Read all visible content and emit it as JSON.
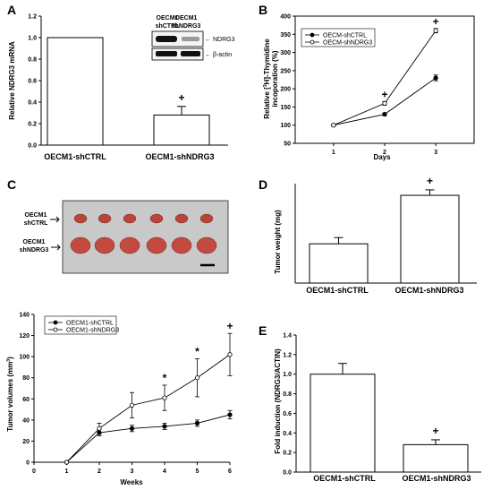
{
  "panels": {
    "A": {
      "label": "A",
      "ylabel": "Relative NDRG3 mRNA",
      "ylim": [
        0,
        1.2
      ],
      "yticks": [
        "0.0",
        "0.2",
        "0.4",
        "0.6",
        "0.8",
        "1.0",
        "1.2"
      ],
      "categories": [
        "OECM1-shCTRL",
        "OECM1-shNDRG3"
      ],
      "values": [
        1.0,
        0.28
      ],
      "errors": [
        0,
        0.08
      ],
      "sig": "+",
      "blot": {
        "col1": [
          "OECM1",
          "shCTRL"
        ],
        "col2": [
          "OECM1",
          "shNDRG3"
        ],
        "row1": "NDRG3",
        "row2": "β-actin"
      }
    },
    "B": {
      "label": "B",
      "ylabel": "Relative [³H]-Thymidine incoporation (%)",
      "xlabel": "Days",
      "ylim": [
        50,
        400
      ],
      "yticks": [
        "50",
        "100",
        "150",
        "200",
        "250",
        "300",
        "350",
        "400"
      ],
      "xticks": [
        "1",
        "2",
        "3"
      ],
      "legend": [
        "OECM-shCTRL",
        "OECM-shNDRG3"
      ],
      "sig": [
        "+",
        "+"
      ]
    },
    "C": {
      "label": "C",
      "photo_labels": [
        [
          "OECM1",
          "shCTRL"
        ],
        [
          "OECM1",
          "shNDRG3"
        ]
      ],
      "ylabel": "Tumor volumes (mm³)",
      "xlabel": "Weeks",
      "ylim": [
        0,
        140
      ],
      "xlim": [
        0,
        6
      ],
      "yticks": [
        "0",
        "20",
        "40",
        "60",
        "80",
        "100",
        "120",
        "140"
      ],
      "xticks": [
        "0",
        "1",
        "2",
        "3",
        "4",
        "5",
        "6"
      ],
      "legend": [
        "OECM1-shCTRL",
        "OECM1-shNDRG3"
      ],
      "sig": [
        "*",
        "*",
        "+"
      ]
    },
    "D": {
      "label": "D",
      "ylabel": "Tumor weight (mg)",
      "categories": [
        "OECM1-shCTRL",
        "OECM1-shNDRG3"
      ],
      "values": [
        158,
        353
      ],
      "errors": [
        25,
        22
      ],
      "ylim": [
        0,
        400
      ],
      "sig": "+"
    },
    "E": {
      "label": "E",
      "ylabel": "Fold induction (NDRG3/ACTIN)",
      "ylim": [
        0,
        1.4
      ],
      "yticks": [
        "0.0",
        "0.2",
        "0.4",
        "0.6",
        "0.8",
        "1.0",
        "1.2",
        "1.4"
      ],
      "categories": [
        "OECM1-shCTRL",
        "OECM1-shNDRG3"
      ],
      "values": [
        1.0,
        0.28
      ],
      "errors": [
        0.11,
        0.05
      ],
      "sig": "+"
    }
  },
  "chart_data": [
    {
      "type": "bar",
      "categories": [
        "OECM1-shCTRL",
        "OECM1-shNDRG3"
      ],
      "values": [
        1.0,
        0.28
      ],
      "errors": [
        0,
        0.08
      ],
      "ylabel": "Relative NDRG3 mRNA",
      "ylim": [
        0,
        1.2
      ]
    },
    {
      "type": "line",
      "x": [
        1,
        2,
        3
      ],
      "series": [
        {
          "name": "OECM-shCTRL",
          "values": [
            100,
            130,
            230
          ],
          "errors": [
            3,
            4,
            8
          ]
        },
        {
          "name": "OECM-shNDRG3",
          "values": [
            100,
            160,
            360
          ],
          "errors": [
            3,
            5,
            6
          ]
        }
      ],
      "xlabel": "Days",
      "ylabel": "Relative [³H]-Thymidine incoporation (%)",
      "ylim": [
        50,
        400
      ],
      "legend_position": "top-left"
    },
    {
      "type": "line",
      "x": [
        1,
        2,
        3,
        4,
        5,
        6
      ],
      "series": [
        {
          "name": "OECM1-shCTRL",
          "values": [
            0,
            28,
            32,
            34,
            37,
            45
          ],
          "errors": [
            0,
            3,
            3,
            3,
            3,
            4
          ]
        },
        {
          "name": "OECM1-shNDRG3",
          "values": [
            0,
            32,
            54,
            61,
            80,
            102
          ],
          "errors": [
            0,
            5,
            12,
            12,
            18,
            20
          ]
        }
      ],
      "xlabel": "Weeks",
      "ylabel": "Tumor volumes (mm³)",
      "xlim": [
        0,
        6
      ],
      "ylim": [
        0,
        140
      ],
      "legend_position": "top-left"
    },
    {
      "type": "bar",
      "categories": [
        "OECM1-shCTRL",
        "OECM1-shNDRG3"
      ],
      "values": [
        158,
        353
      ],
      "errors": [
        25,
        22
      ],
      "ylabel": "Tumor weight (mg)",
      "ylim": [
        0,
        400
      ]
    },
    {
      "type": "bar",
      "categories": [
        "OECM1-shCTRL",
        "OECM1-shNDRG3"
      ],
      "values": [
        1.0,
        0.28
      ],
      "errors": [
        0.11,
        0.05
      ],
      "ylabel": "Fold induction (NDRG3/ACTIN)",
      "ylim": [
        0,
        1.4
      ]
    }
  ]
}
